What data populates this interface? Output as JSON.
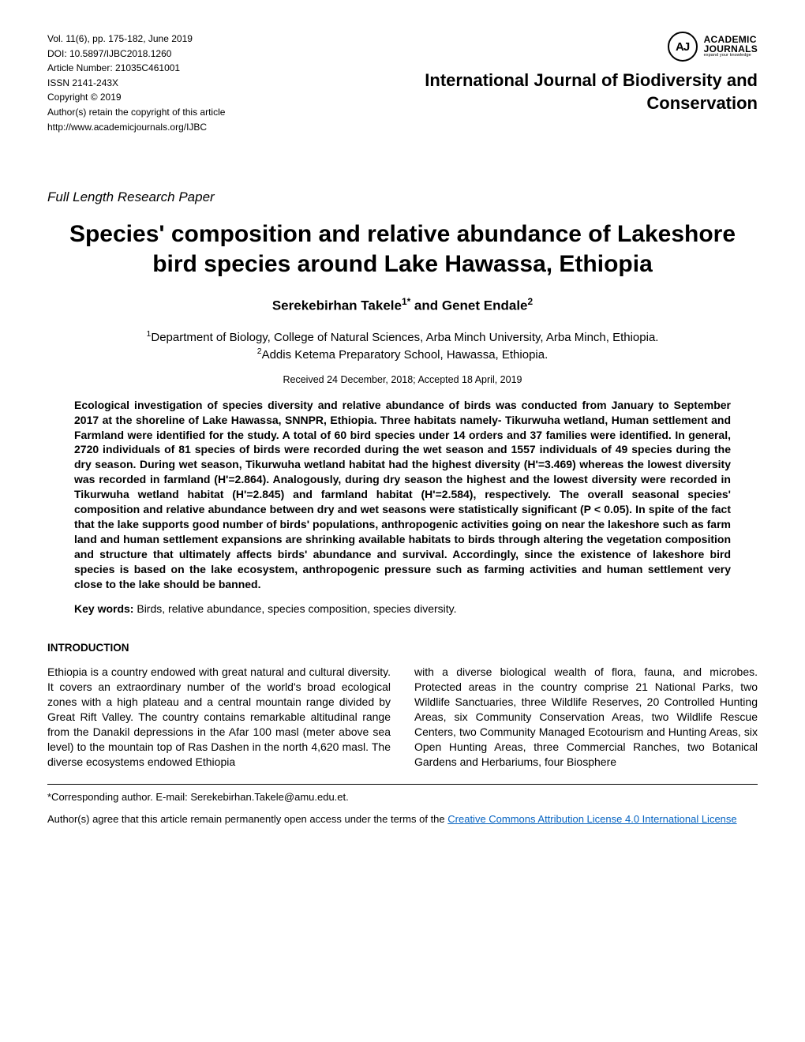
{
  "meta": {
    "volume_line": "Vol. 11(6), pp. 175-182, June 2019",
    "doi_line": "DOI: 10.5897/IJBC2018.1260",
    "article_number_line": "Article Number: 21035C461001",
    "issn_line": "ISSN 2141-243X",
    "copyright_line": "Copyright © 2019",
    "retain_line": "Author(s) retain the copyright of this article",
    "url_line": "http://www.academicjournals.org/IJBC"
  },
  "publisher": {
    "logo_initials": "AJ",
    "logo_main": "ACADEMIC",
    "logo_sub": "JOURNALS",
    "logo_tag": "expand your knowledge",
    "journal_name": "International Journal of Biodiversity and Conservation"
  },
  "paper": {
    "type": "Full Length Research Paper",
    "title": "Species' composition and relative abundance of Lakeshore bird species around Lake Hawassa, Ethiopia",
    "authors_html": "Serekebirhan Takele<sup>1*</sup> and Genet Endale<sup>2</sup>",
    "affil1_html": "<sup>1</sup>Department of Biology, College of Natural Sciences, Arba Minch University, Arba Minch, Ethiopia.",
    "affil2_html": "<sup>2</sup>Addis Ketema Preparatory School, Hawassa, Ethiopia.",
    "dates": "Received 24 December, 2018; Accepted 18 April, 2019",
    "abstract": "Ecological investigation of species diversity and relative abundance of birds was conducted from January to September 2017 at the shoreline of Lake Hawassa, SNNPR, Ethiopia. Three habitats namely- Tikurwuha wetland, Human settlement and Farmland were identified for the study. A total of 60 bird species under 14 orders and 37 families were identified. In general, 2720 individuals of 81 species of birds were recorded during the wet season and 1557 individuals of 49 species during the dry season. During wet season, Tikurwuha wetland habitat had the highest diversity (H'=3.469) whereas the lowest diversity was recorded in farmland (H'=2.864). Analogously, during dry season the highest and the lowest diversity were recorded in Tikurwuha wetland habitat (H'=2.845) and farmland habitat (H'=2.584), respectively. The overall seasonal species' composition and relative abundance between dry and wet seasons were statistically significant (P < 0.05). In spite of the fact that the lake supports good number of birds' populations, anthropogenic activities going on near the lakeshore such as farm land and human settlement expansions are shrinking available habitats to birds through altering the vegetation composition and structure that ultimately affects birds' abundance and survival. Accordingly, since the existence of lakeshore bird species is based on the lake ecosystem, anthropogenic pressure such as farming activities and human settlement very close to the lake should be banned.",
    "keywords_label": "Key words:",
    "keywords_text": " Birds, relative abundance, species composition, species diversity."
  },
  "body": {
    "intro_header": "INTRODUCTION",
    "col1": "Ethiopia is a country endowed with great natural and cultural diversity. It covers an extraordinary number of the world's broad ecological zones with a high plateau and a central mountain range divided by Great Rift Valley. The country contains remarkable altitudinal range from the Danakil depressions in the Afar 100 masl (meter above sea level) to the mountain top of Ras Dashen in the north 4,620 masl. The diverse  ecosystems  endowed  Ethiopia",
    "col2": "with a diverse biological wealth of flora, fauna, and microbes. Protected areas in the country comprise 21 National Parks, two Wildlife Sanctuaries, three Wildlife Reserves, 20 Controlled Hunting Areas, six Community Conservation Areas, two Wildlife Rescue Centers, two Community Managed Ecotourism and Hunting Areas, six Open Hunting Areas, three Commercial Ranches, two Botanical Gardens and Herbariums, four Biosphere"
  },
  "foot": {
    "corresponding": "*Corresponding author. E-mail: Serekebirhan.Takele@amu.edu.et.",
    "license_pre": "Author(s) agree that this article remain permanently open access under the terms of the ",
    "license_link": "Creative Commons Attribution License 4.0 International License"
  },
  "style": {
    "page_bg": "#ffffff",
    "text_color": "#000000",
    "link_color": "#0563c1",
    "meta_fontsize": 12,
    "journal_fontsize": 22,
    "title_fontsize": 30,
    "body_fontsize": 14,
    "paper_width": 1020,
    "paper_height": 1320
  }
}
